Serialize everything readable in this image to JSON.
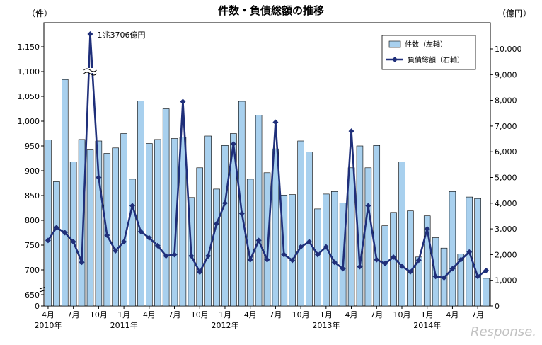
{
  "chart_data": {
    "type": "bar+line",
    "title": "件数・負債総額の推移",
    "left_unit": "（件）",
    "right_unit": "（億円）",
    "left_ticks": [
      "0",
      "650",
      "700",
      "750",
      "800",
      "850",
      "900",
      "950",
      "1,000",
      "1,050",
      "1,100",
      "1,150"
    ],
    "right_ticks": [
      "0",
      "1,000",
      "2,000",
      "3,000",
      "4,000",
      "5,000",
      "6,000",
      "7,000",
      "8,000",
      "9,000",
      "10,000"
    ],
    "left_axis_break": "600",
    "right_axis_break": "10000-13706",
    "x_month_labels": [
      "4月",
      "7月",
      "10月",
      "1月",
      "4月",
      "7月",
      "10月",
      "1月",
      "4月",
      "7月",
      "10月",
      "1月",
      "4月",
      "7月",
      "10月",
      "1月",
      "4月",
      "7月"
    ],
    "x_year_labels": [
      "2010年",
      "2011年",
      "2012年",
      "2013年",
      "2014年"
    ],
    "annotation": "1兆3706億円",
    "months": [
      "2010-04",
      "2010-05",
      "2010-06",
      "2010-07",
      "2010-08",
      "2010-09",
      "2010-10",
      "2010-11",
      "2010-12",
      "2011-01",
      "2011-02",
      "2011-03",
      "2011-04",
      "2011-05",
      "2011-06",
      "2011-07",
      "2011-08",
      "2011-09",
      "2011-10",
      "2011-11",
      "2011-12",
      "2012-01",
      "2012-02",
      "2012-03",
      "2012-04",
      "2012-05",
      "2012-06",
      "2012-07",
      "2012-08",
      "2012-09",
      "2012-10",
      "2012-11",
      "2012-12",
      "2013-01",
      "2013-02",
      "2013-03",
      "2013-04",
      "2013-05",
      "2013-06",
      "2013-07",
      "2013-08",
      "2013-09",
      "2013-10",
      "2013-11",
      "2013-12",
      "2014-01",
      "2014-02",
      "2014-03",
      "2014-04",
      "2014-05",
      "2014-06",
      "2014-07",
      "2014-08"
    ],
    "series": [
      {
        "name": "件数（左軸）",
        "kind": "bar",
        "color": "#a8d0ee",
        "values": [
          962,
          878,
          1084,
          918,
          963,
          942,
          960,
          935,
          946,
          975,
          883,
          1041,
          955,
          963,
          1025,
          965,
          968,
          846,
          906,
          970,
          863,
          951,
          975,
          1040,
          883,
          1012,
          896,
          944,
          851,
          852,
          960,
          938,
          823,
          853,
          858,
          835,
          906,
          950,
          906,
          951,
          789,
          816,
          918,
          819,
          726,
          809,
          765,
          744,
          858,
          732,
          847,
          844,
          683
        ]
      },
      {
        "name": "負債総額（右軸）",
        "kind": "line",
        "color": "#1f2f7a",
        "values": [
          2550,
          3050,
          2850,
          2500,
          1700,
          13706,
          5000,
          2750,
          2150,
          2500,
          3900,
          2900,
          2650,
          2350,
          1950,
          2000,
          7950,
          1950,
          1320,
          1950,
          3200,
          4000,
          6300,
          3600,
          1800,
          2550,
          1800,
          7150,
          2000,
          1780,
          2300,
          2500,
          2000,
          2300,
          1700,
          1450,
          6800,
          1530,
          3900,
          1800,
          1650,
          1900,
          1550,
          1330,
          1780,
          3000,
          1150,
          1100,
          1450,
          1800,
          2100,
          1150,
          1380
        ]
      }
    ],
    "legend_position": "top-right",
    "watermark": "Response."
  }
}
